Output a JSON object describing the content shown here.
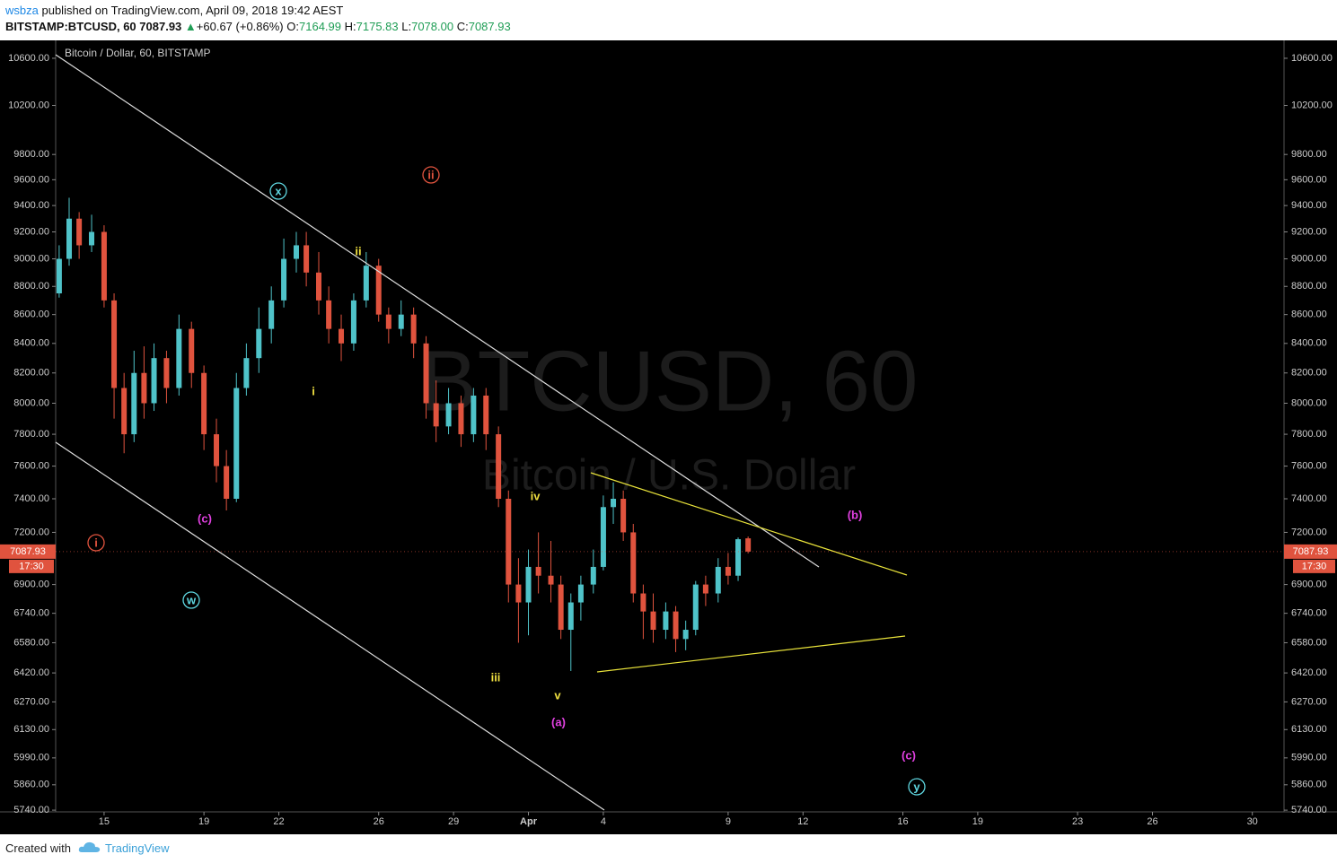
{
  "header": {
    "user": "wsbza",
    "published": "published on TradingView.com, April 09, 2018 19:42 AEST",
    "symbol": "BITSTAMP:BTCUSD, 60",
    "price": "7087.93",
    "arrow": "▲",
    "change": "+60.67 (+0.86%)",
    "o_label": "O:",
    "o": "7164.99",
    "h_label": "H:",
    "h": "7175.83",
    "l_label": "L:",
    "l": "7078.00",
    "c_label": "C:",
    "c": "7087.93"
  },
  "chart_data": {
    "type": "candlestick",
    "legend_title": "Bitcoin / Dollar, 60, BITSTAMP",
    "watermark": "BTCUSD, 60",
    "watermark_sub": "Bitcoin / U.S. Dollar",
    "log_scale": true,
    "grid": false,
    "up_color": "#4fc3c9",
    "down_color": "#e0533e",
    "x": [
      12.2,
      12.6,
      13.0,
      13.5,
      14.0,
      14.4,
      14.8,
      15.2,
      15.6,
      16.0,
      16.5,
      17.0,
      17.5,
      18.0,
      18.5,
      18.9,
      19.3,
      19.7,
      20.2,
      20.7,
      21.2,
      21.7,
      22.1,
      22.6,
      23.0,
      23.5,
      24.0,
      24.5,
      25.0,
      25.4,
      25.9,
      26.4,
      26.9,
      27.3,
      27.8,
      28.3,
      28.8,
      29.3,
      29.8,
      30.2,
      30.6,
      31.0,
      31.4,
      31.9,
      32.3,
      32.7,
      33.1,
      33.6,
      34.0,
      34.4,
      34.8,
      35.2,
      35.6,
      36.0,
      36.5,
      36.9,
      37.3,
      37.7,
      38.1,
      38.6,
      39.0,
      39.4,
      39.8
    ],
    "open": [
      8750,
      9000,
      9300,
      9100,
      9200,
      8700,
      8100,
      7800,
      8200,
      8000,
      8300,
      8100,
      8500,
      8200,
      7800,
      7600,
      7400,
      8100,
      8300,
      8500,
      8700,
      9000,
      9100,
      8900,
      8700,
      8500,
      8400,
      8700,
      8950,
      8600,
      8500,
      8600,
      8400,
      8000,
      7850,
      8000,
      7800,
      8050,
      7800,
      7400,
      6900,
      6800,
      7000,
      6950,
      6900,
      6650,
      6800,
      6900,
      7000,
      7350,
      7400,
      7200,
      6850,
      6750,
      6650,
      6750,
      6600,
      6650,
      6900,
      6850,
      7000,
      6950,
      7164.99
    ],
    "high": [
      9100,
      9460,
      9350,
      9330,
      9250,
      8750,
      8200,
      8350,
      8380,
      8400,
      8350,
      8600,
      8550,
      8250,
      7900,
      7700,
      8200,
      8400,
      8650,
      8800,
      9150,
      9200,
      9200,
      9050,
      8800,
      8600,
      8750,
      9050,
      9000,
      8650,
      8700,
      8650,
      8450,
      8150,
      8100,
      8050,
      8100,
      8100,
      7850,
      7450,
      7050,
      7100,
      7200,
      7150,
      6950,
      6850,
      6950,
      7100,
      7420,
      7500,
      7450,
      7250,
      6900,
      6850,
      6800,
      6780,
      6700,
      6920,
      6950,
      7050,
      7080,
      7170,
      7175.83
    ],
    "low": [
      8720,
      8950,
      9000,
      9050,
      8650,
      7900,
      7680,
      7750,
      7900,
      7950,
      8000,
      8050,
      8100,
      7700,
      7500,
      7330,
      7380,
      8050,
      8200,
      8400,
      8650,
      8900,
      8800,
      8600,
      8400,
      8280,
      8350,
      8650,
      8550,
      8400,
      8450,
      8300,
      7900,
      7750,
      7800,
      7720,
      7750,
      7700,
      7350,
      6800,
      6580,
      6620,
      6850,
      6800,
      6600,
      6430,
      6700,
      6850,
      6980,
      7250,
      7150,
      6800,
      6600,
      6580,
      6600,
      6530,
      6540,
      6620,
      6780,
      6800,
      6900,
      6920,
      7078
    ],
    "close": [
      9000,
      9300,
      9100,
      9200,
      8700,
      8100,
      7800,
      8200,
      8000,
      8300,
      8100,
      8500,
      8200,
      7800,
      7600,
      7400,
      8100,
      8300,
      8500,
      8700,
      9000,
      9100,
      8900,
      8700,
      8500,
      8400,
      8700,
      8950,
      8600,
      8500,
      8600,
      8400,
      8000,
      7850,
      8000,
      7800,
      8050,
      7800,
      7400,
      6900,
      6800,
      7000,
      6950,
      6900,
      6650,
      6800,
      6900,
      7000,
      7350,
      7400,
      7200,
      6850,
      6750,
      6650,
      6750,
      6600,
      6650,
      6900,
      6850,
      7000,
      6950,
      7160,
      7087.93
    ],
    "last_price": 7087.93,
    "countdown": "17:30",
    "ylim": [
      5732,
      10756
    ],
    "yticks": [
      {
        "value": 10600,
        "label": "10600.00"
      },
      {
        "value": 10200,
        "label": "10200.00"
      },
      {
        "value": 9800,
        "label": "9800.00"
      },
      {
        "value": 9600,
        "label": "9600.00"
      },
      {
        "value": 9400,
        "label": "9400.00"
      },
      {
        "value": 9200,
        "label": "9200.00"
      },
      {
        "value": 9000,
        "label": "9000.00"
      },
      {
        "value": 8800,
        "label": "8800.00"
      },
      {
        "value": 8600,
        "label": "8600.00"
      },
      {
        "value": 8400,
        "label": "8400.00"
      },
      {
        "value": 8200,
        "label": "8200.00"
      },
      {
        "value": 8000,
        "label": "8000.00"
      },
      {
        "value": 7800,
        "label": "7800.00"
      },
      {
        "value": 7600,
        "label": "7600.00"
      },
      {
        "value": 7400,
        "label": "7400.00"
      },
      {
        "value": 7200,
        "label": "7200.00"
      },
      {
        "value": 6900,
        "label": "6900.00"
      },
      {
        "value": 6740,
        "label": "6740.00"
      },
      {
        "value": 6580,
        "label": "6580.00"
      },
      {
        "value": 6420,
        "label": "6420.00"
      },
      {
        "value": 6270,
        "label": "6270.00"
      },
      {
        "value": 6130,
        "label": "6130.00"
      },
      {
        "value": 5990,
        "label": "5990.00"
      },
      {
        "value": 5860,
        "label": "5860.00"
      },
      {
        "value": 5740,
        "label": "5740.00"
      }
    ],
    "xlim": [
      12.06,
      61.27
    ],
    "xticks": [
      {
        "value": 14,
        "label": "15"
      },
      {
        "value": 18,
        "label": "19"
      },
      {
        "value": 21,
        "label": "22"
      },
      {
        "value": 25,
        "label": "26"
      },
      {
        "value": 28,
        "label": "29"
      },
      {
        "value": 31,
        "label": "Apr"
      },
      {
        "value": 34,
        "label": "4"
      },
      {
        "value": 39,
        "label": "9"
      },
      {
        "value": 42,
        "label": "12"
      },
      {
        "value": 46,
        "label": "16"
      },
      {
        "value": 49,
        "label": "19"
      },
      {
        "value": 53,
        "label": "23"
      },
      {
        "value": 56,
        "label": "26"
      },
      {
        "value": 60,
        "label": "30"
      }
    ],
    "wave_labels": [
      "i",
      "ii",
      "x",
      "w",
      "y",
      "(c)",
      "(a)",
      "(b)",
      "(c)",
      "i",
      "ii",
      "iii",
      "iv",
      "v"
    ]
  },
  "footer": {
    "created": "Created with",
    "brand": "TradingView"
  }
}
